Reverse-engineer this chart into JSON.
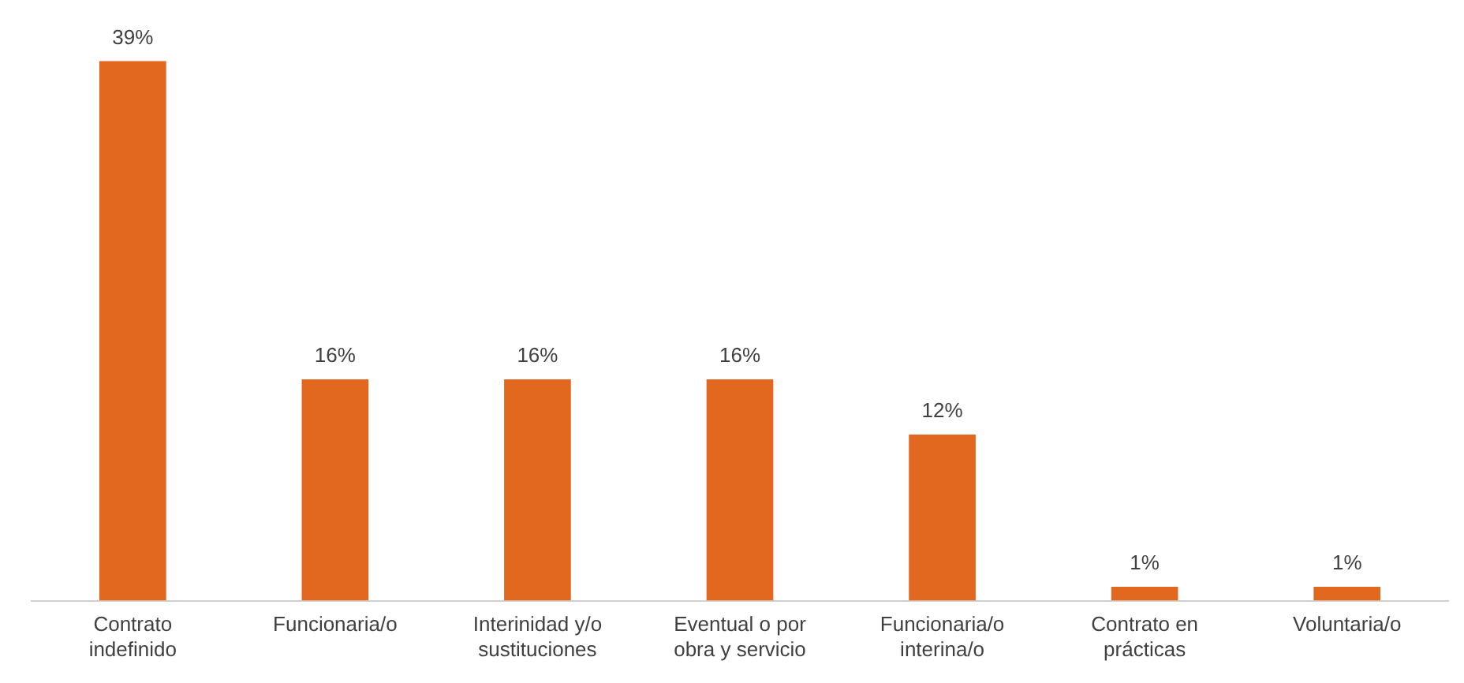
{
  "chart_data": {
    "type": "bar",
    "categories": [
      "Contrato indefinido",
      "Funcionaria/o",
      "Interinidad y/o sustituciones",
      "Eventual o por obra y servicio",
      "Funcionaria/o interina/o",
      "Contrato en prácticas",
      "Voluntaria/o"
    ],
    "values": [
      39,
      16,
      16,
      16,
      12,
      1,
      1
    ],
    "value_labels": [
      "39%",
      "16%",
      "16%",
      "16%",
      "12%",
      "1%",
      "1%"
    ],
    "color": "#e2681f"
  }
}
